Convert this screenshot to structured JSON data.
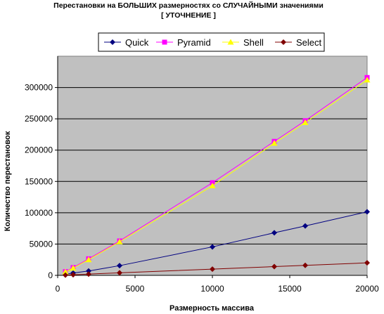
{
  "chart_data": {
    "type": "line",
    "title": "Перестановки на БОЛЬШИХ размерностях со СЛУЧАЙНЫМИ значениями",
    "subtitle": "[ УТОЧНЕНИЕ ]",
    "xlabel": "Размерность массива",
    "ylabel": "Количество перестановок",
    "xlim": [
      0,
      20000
    ],
    "ylim": [
      0,
      300000
    ],
    "xticks": [
      "0",
      "5000",
      "10000",
      "15000",
      "20000"
    ],
    "yticks": [
      "0",
      "50000",
      "100000",
      "150000",
      "200000",
      "250000",
      "300000"
    ],
    "grid": "horizontal",
    "legend_position": "top",
    "x": [
      500,
      1000,
      2000,
      4000,
      10000,
      14000,
      16000,
      20000
    ],
    "series": [
      {
        "name": "Quick",
        "color": "#000080",
        "marker": "diamond",
        "values": [
          1700,
          3800,
          7000,
          15500,
          45500,
          68000,
          79000,
          101500
        ]
      },
      {
        "name": "Pyramid",
        "color": "#ff00ff",
        "marker": "square",
        "values": [
          6000,
          12500,
          26500,
          55000,
          148000,
          214000,
          247000,
          316000
        ]
      },
      {
        "name": "Shell",
        "color": "#ffff00",
        "marker": "triangle",
        "values": [
          5500,
          11500,
          25000,
          53500,
          143000,
          211000,
          244000,
          312000
        ]
      },
      {
        "name": "Select",
        "color": "#800000",
        "marker": "diamond",
        "values": [
          400,
          1000,
          2000,
          4000,
          10000,
          14000,
          16000,
          20000
        ]
      }
    ]
  }
}
